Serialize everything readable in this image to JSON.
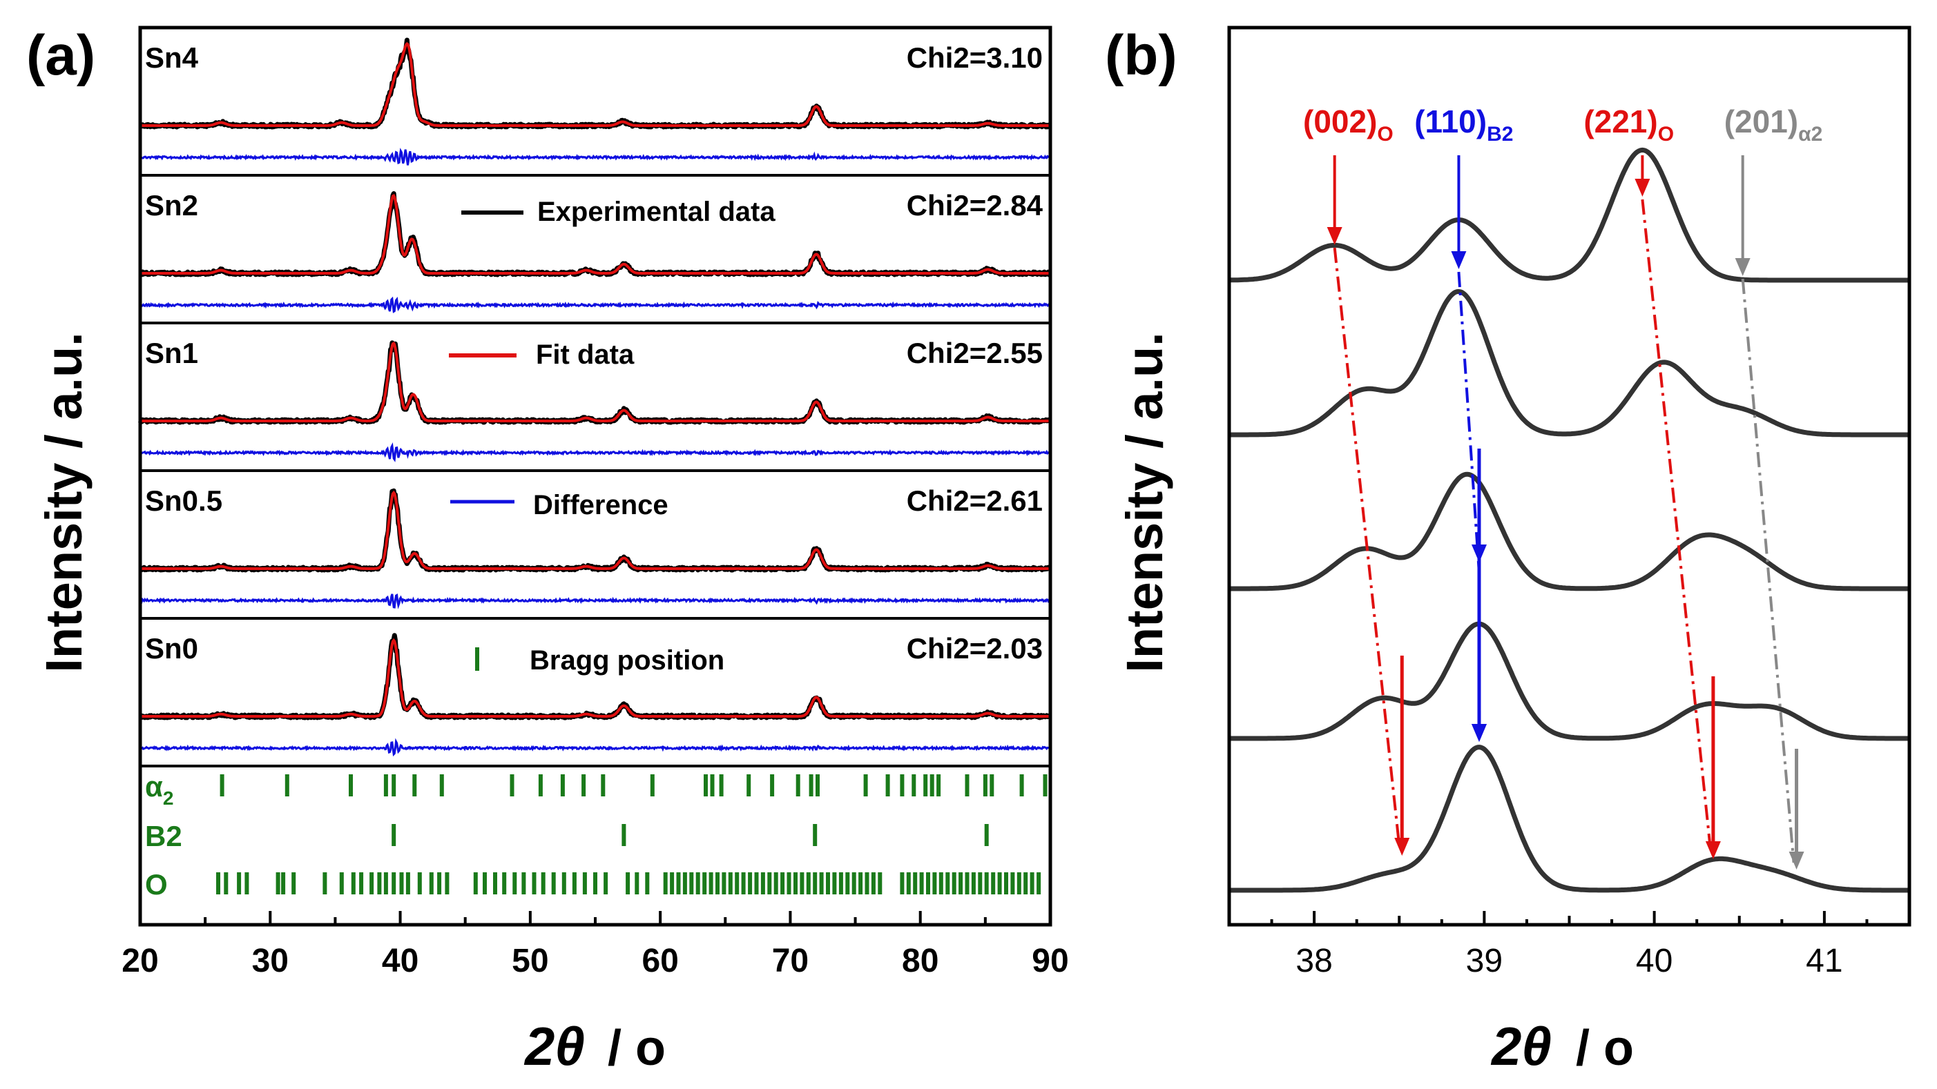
{
  "chart_data": [
    {
      "panel_label": "(a)",
      "type": "line",
      "ylabel": "Intensity / a.u.",
      "xlabel_main": "2θ",
      "xlabel_unit": "/ o",
      "xlim": [
        20,
        90
      ],
      "xticks": [
        "20",
        "30",
        "40",
        "50",
        "60",
        "70",
        "80",
        "90"
      ],
      "legend": [
        {
          "label": "Experimental data",
          "color": "#000000",
          "style": "line"
        },
        {
          "label": "Fit data",
          "color": "#e01010",
          "style": "line"
        },
        {
          "label": "Difference",
          "color": "#1010e0",
          "style": "line"
        },
        {
          "label": "Bragg position",
          "color": "#1a7a1a",
          "style": "tick"
        }
      ],
      "samples": [
        {
          "name": "Sn4",
          "chi2": "Chi2=3.10",
          "peaks": [
            [
              40.6,
              1.0
            ],
            [
              39.8,
              0.6
            ],
            [
              39.1,
              0.25
            ],
            [
              41.8,
              0.05
            ],
            [
              57.1,
              0.05
            ],
            [
              72.0,
              0.25
            ],
            [
              35.5,
              0.04
            ],
            [
              26.2,
              0.04
            ],
            [
              85.2,
              0.03
            ]
          ]
        },
        {
          "name": "Sn2",
          "chi2": "Chi2=2.84",
          "peaks": [
            [
              39.5,
              1.0
            ],
            [
              40.9,
              0.45
            ],
            [
              38.8,
              0.12
            ],
            [
              57.2,
              0.12
            ],
            [
              72.0,
              0.25
            ],
            [
              54.3,
              0.04
            ],
            [
              36.2,
              0.04
            ],
            [
              26.2,
              0.04
            ],
            [
              85.2,
              0.05
            ]
          ]
        },
        {
          "name": "Sn1",
          "chi2": "Chi2=2.55",
          "peaks": [
            [
              39.5,
              1.0
            ],
            [
              41.0,
              0.35
            ],
            [
              38.8,
              0.12
            ],
            [
              57.2,
              0.14
            ],
            [
              72.0,
              0.25
            ],
            [
              54.3,
              0.04
            ],
            [
              36.2,
              0.04
            ],
            [
              26.2,
              0.04
            ],
            [
              85.2,
              0.05
            ]
          ]
        },
        {
          "name": "Sn0.5",
          "chi2": "Chi2=2.61",
          "peaks": [
            [
              39.5,
              1.0
            ],
            [
              41.1,
              0.2
            ],
            [
              57.2,
              0.14
            ],
            [
              72.0,
              0.25
            ],
            [
              54.3,
              0.03
            ],
            [
              36.2,
              0.03
            ],
            [
              26.2,
              0.03
            ],
            [
              85.2,
              0.04
            ]
          ]
        },
        {
          "name": "Sn0",
          "chi2": "Chi2=2.03",
          "peaks": [
            [
              39.5,
              1.0
            ],
            [
              41.1,
              0.2
            ],
            [
              57.2,
              0.14
            ],
            [
              72.0,
              0.25
            ],
            [
              54.3,
              0.03
            ],
            [
              36.2,
              0.03
            ],
            [
              26.2,
              0.03
            ],
            [
              85.2,
              0.04
            ]
          ]
        }
      ],
      "bragg_rows": [
        {
          "label_main": "α",
          "label_sub": "2",
          "positions": [
            26.3,
            31.3,
            36.2,
            38.9,
            39.5,
            41.1,
            43.2,
            48.6,
            50.8,
            52.5,
            54.1,
            55.6,
            59.4,
            63.5,
            64.0,
            64.7,
            66.8,
            68.6,
            70.6,
            71.6,
            72.1,
            75.8,
            77.5,
            78.6,
            79.5,
            80.4,
            80.9,
            81.4,
            83.6,
            85.0,
            85.5,
            87.8,
            89.6
          ]
        },
        {
          "label_main": "B2",
          "label_sub": "",
          "positions": [
            39.5,
            57.2,
            71.9,
            85.1
          ]
        },
        {
          "label_main": "O",
          "label_sub": "",
          "positions": [
            26.0,
            26.6,
            27.6,
            28.2,
            30.6,
            31.0,
            31.8,
            34.2,
            35.5,
            36.4,
            37.0,
            37.8,
            38.4,
            38.9,
            39.5,
            40.1,
            40.6,
            41.5,
            42.4,
            43.0,
            43.6,
            45.8,
            46.5,
            47.3,
            48.0,
            48.8,
            49.5,
            50.3,
            51.0,
            51.8,
            52.6,
            53.4,
            54.2,
            55.0,
            55.8,
            57.5,
            58.2,
            59.0,
            60.4,
            60.9,
            61.4,
            61.9,
            62.4,
            62.9,
            63.4,
            63.9,
            64.4,
            64.9,
            65.4,
            65.9,
            66.4,
            66.9,
            67.4,
            67.9,
            68.4,
            68.9,
            69.4,
            69.9,
            70.4,
            70.9,
            71.4,
            71.9,
            72.4,
            72.9,
            73.4,
            73.9,
            74.4,
            74.9,
            75.4,
            75.9,
            76.4,
            76.9,
            78.6,
            79.1,
            79.6,
            80.1,
            80.6,
            81.1,
            81.6,
            82.1,
            82.6,
            83.1,
            83.6,
            84.1,
            84.6,
            85.1,
            85.6,
            86.1,
            86.6,
            87.1,
            87.6,
            88.1,
            88.6,
            89.1
          ]
        }
      ]
    },
    {
      "panel_label": "(b)",
      "type": "line",
      "ylabel": "Intensity / a.u.",
      "xlabel_main": "2θ",
      "xlabel_unit": "/ o",
      "xlim": [
        37.5,
        41.5
      ],
      "xticks": [
        "38",
        "39",
        "40",
        "41"
      ],
      "curves": [
        {
          "name": "Sn4",
          "peaks": [
            [
              38.12,
              0.22
            ],
            [
              38.85,
              0.38
            ],
            [
              39.93,
              0.82
            ],
            [
              41.3,
              0.0
            ]
          ]
        },
        {
          "name": "Sn2",
          "peaks": [
            [
              38.3,
              0.28
            ],
            [
              38.85,
              0.9
            ],
            [
              40.05,
              0.45
            ],
            [
              40.5,
              0.15
            ]
          ]
        },
        {
          "name": "Sn1",
          "peaks": [
            [
              38.3,
              0.25
            ],
            [
              38.9,
              0.72
            ],
            [
              40.25,
              0.28
            ],
            [
              40.55,
              0.18
            ]
          ]
        },
        {
          "name": "Sn0.5",
          "peaks": [
            [
              38.4,
              0.25
            ],
            [
              38.97,
              0.72
            ],
            [
              40.3,
              0.2
            ],
            [
              40.7,
              0.18
            ]
          ]
        },
        {
          "name": "Sn0",
          "peaks": [
            [
              38.45,
              0.1
            ],
            [
              38.97,
              0.9
            ],
            [
              40.35,
              0.18
            ],
            [
              40.7,
              0.1
            ]
          ]
        }
      ],
      "annotations": [
        {
          "label_main": "(002)",
          "label_sub": "O",
          "color": "#e01010",
          "from_x": 38.12,
          "to_x": 38.5,
          "label_x": 38.2
        },
        {
          "label_main": "(110)",
          "label_sub": "B2",
          "color": "#1010e0",
          "from_x": 38.85,
          "to_x": 38.97,
          "label_x": 38.88
        },
        {
          "label_main": "(221)",
          "label_sub": "O",
          "color": "#e01010",
          "from_x": 39.93,
          "to_x": 40.33,
          "label_x": 39.85
        },
        {
          "label_main": "(201)",
          "label_sub": "α2",
          "color": "#888888",
          "from_x": 40.52,
          "to_x": 40.82,
          "label_x": 40.7
        }
      ]
    }
  ]
}
